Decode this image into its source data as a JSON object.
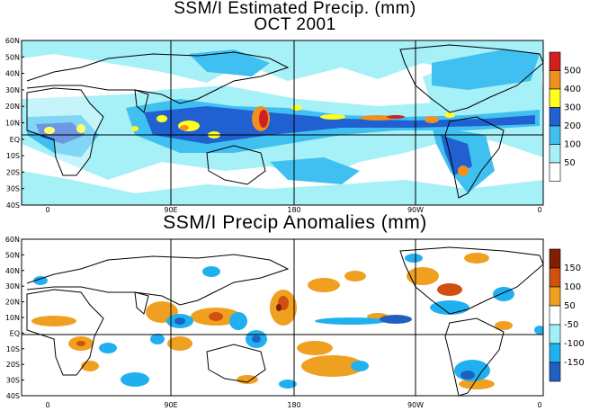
{
  "titles": {
    "top_line1": "SSM/I Estimated Precip. (mm)",
    "top_line2": "OCT 2001",
    "bottom": "SSM/I Precip Anomalies (mm)"
  },
  "lat_labels": [
    "60N",
    "50N",
    "40N",
    "30N",
    "20N",
    "10N",
    "EQ",
    "10S",
    "20S",
    "30S",
    "40S"
  ],
  "lon_labels": [
    "0",
    "90E",
    "180",
    "90W",
    "0"
  ],
  "top_legend": {
    "labels": [
      "500",
      "400",
      "300",
      "200",
      "100",
      "50"
    ],
    "colors": [
      "#ffffff",
      "#a6f0f8",
      "#40c0f0",
      "#2060d0",
      "#ffff20",
      "#f09020",
      "#d02020"
    ]
  },
  "bottom_legend": {
    "labels": [
      "150",
      "100",
      "50",
      "-50",
      "-100",
      "-150"
    ],
    "colors": [
      "#2060c0",
      "#20b0f0",
      "#a0f0f8",
      "#ffffff",
      "#f0a020",
      "#d05010",
      "#802000"
    ]
  },
  "colors": {
    "land": "#ffffff",
    "outline": "#000000"
  }
}
